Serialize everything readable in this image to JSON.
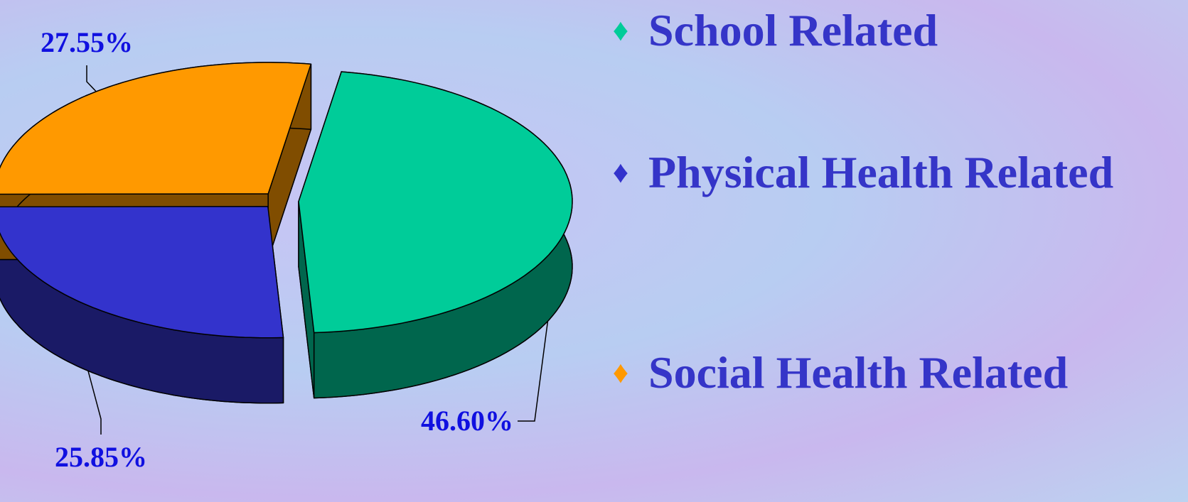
{
  "chart_data": {
    "type": "pie",
    "categories": [
      "School Related",
      "Physical Health Related",
      "Social Health Related"
    ],
    "values": [
      46.6,
      25.85,
      27.55
    ],
    "value_labels": [
      "46.60%",
      "25.85%",
      "27.55%"
    ],
    "colors": [
      "#00cc99",
      "#3333cc",
      "#ff9900"
    ],
    "legend": "right"
  }
}
